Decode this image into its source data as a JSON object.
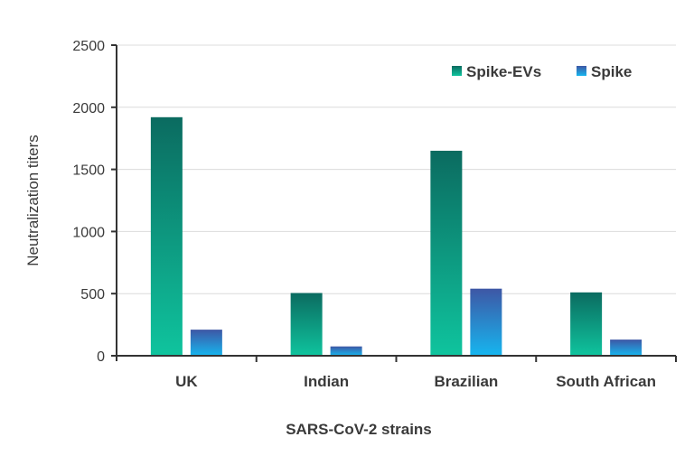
{
  "chart_data": {
    "type": "bar",
    "title": "",
    "xlabel": "SARS-CoV-2 strains",
    "ylabel": "Neutralization titers",
    "ylim": [
      0,
      2500
    ],
    "yticks": [
      0,
      500,
      1000,
      1500,
      2000,
      2500
    ],
    "grid": true,
    "legend_position": "top-right",
    "categories": [
      "UK",
      "Indian",
      "Brazilian",
      "South African"
    ],
    "series": [
      {
        "name": "Spike-EVs",
        "values": [
          1920,
          505,
          1650,
          510
        ],
        "color_top": "#0b6b60",
        "color_bottom": "#0fc49e"
      },
      {
        "name": "Spike",
        "values": [
          210,
          75,
          540,
          130
        ],
        "color_top": "#3e57a5",
        "color_bottom": "#16b6ef"
      }
    ]
  }
}
